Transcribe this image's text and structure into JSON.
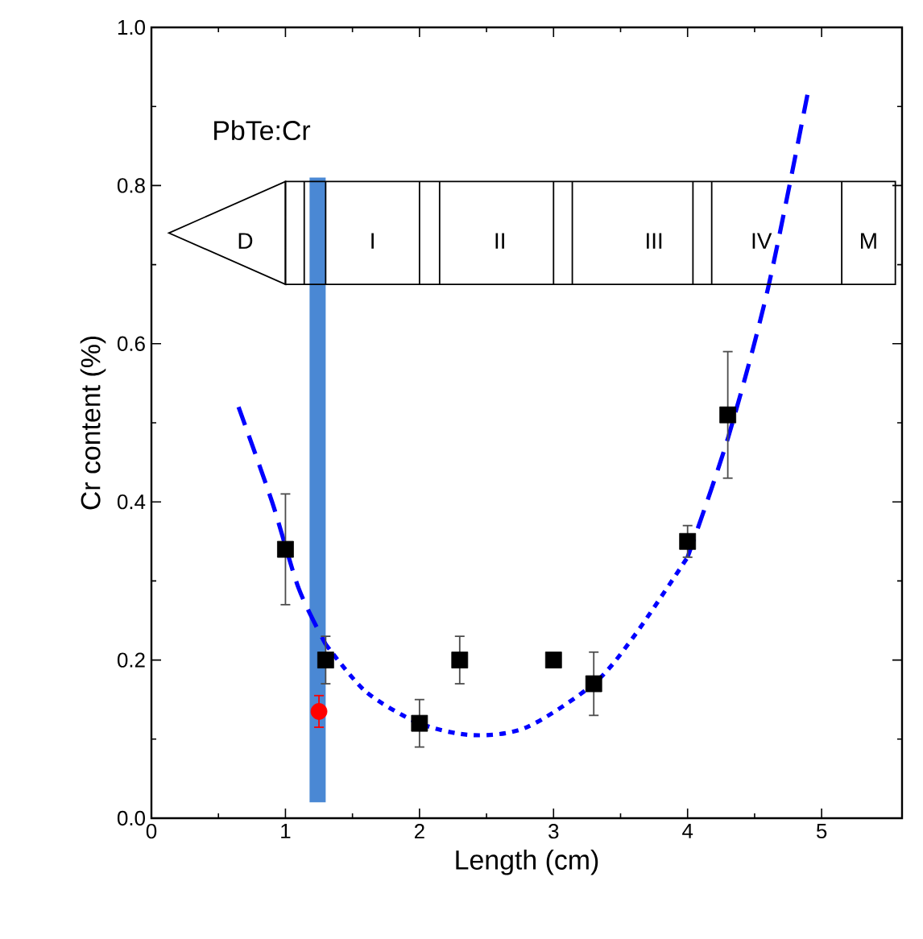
{
  "chart_data": {
    "type": "scatter",
    "xlabel": "Length (cm)",
    "ylabel": "Cr content  (%)",
    "xlim": [
      0,
      5.6
    ],
    "ylim": [
      0,
      1.0
    ],
    "xticks": [
      0,
      1,
      2,
      3,
      4,
      5
    ],
    "yticks": [
      {
        "value": 0,
        "label": "0.0"
      },
      {
        "value": 0.2,
        "label": "0.2"
      },
      {
        "value": 0.4,
        "label": "0.4"
      },
      {
        "value": 0.6,
        "label": "0.6"
      },
      {
        "value": 0.8,
        "label": "0.8"
      },
      {
        "value": 1.0,
        "label": "1.0"
      }
    ],
    "annotations": [
      "PbTe:Cr",
      "D",
      "I",
      "II",
      "III",
      "IV",
      "M"
    ],
    "series": [
      {
        "type": "bar",
        "color": "#4a88d4",
        "x": [
          1.24
        ],
        "base": [
          0.02
        ],
        "values": [
          0.79
        ]
      },
      {
        "color": "#000000",
        "marker": "square",
        "x": [
          1,
          1.3,
          2,
          2.3,
          3,
          3.3,
          4,
          4.3
        ],
        "values": [
          0.34,
          0.2,
          0.12,
          0.2,
          0.2,
          0.17,
          0.35,
          0.51
        ],
        "errors": [
          0.07,
          0.03,
          0.03,
          0.03,
          null,
          0.04,
          0.02,
          0.08
        ]
      },
      {
        "color": "#ff0000",
        "marker": "circle",
        "x": [
          1.25
        ],
        "values": [
          0.135
        ],
        "errors": [
          0.02
        ]
      },
      {
        "type": "line",
        "color": "#0000ff",
        "line_style": "dashed",
        "x": [
          0.65,
          0.9,
          1.1,
          1.3
        ],
        "values": [
          0.52,
          0.4,
          0.29,
          0.22
        ]
      },
      {
        "type": "line",
        "color": "#0000ff",
        "line_style": "dotted",
        "x": [
          1.3,
          1.6,
          2.0,
          2.4,
          2.8,
          3.3,
          3.6,
          4.0
        ],
        "values": [
          0.22,
          0.16,
          0.12,
          0.105,
          0.115,
          0.17,
          0.23,
          0.33
        ]
      },
      {
        "type": "line",
        "color": "#0000ff",
        "line_style": "dashed",
        "x": [
          4.0,
          4.3,
          4.6,
          4.9
        ],
        "values": [
          0.33,
          0.48,
          0.67,
          0.92
        ]
      }
    ]
  }
}
